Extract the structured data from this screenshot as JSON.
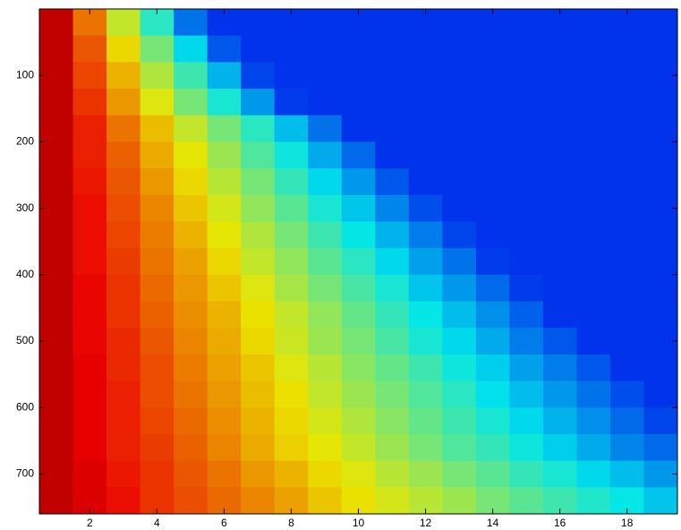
{
  "chart_data": {
    "type": "heatmap",
    "colormap": "jet",
    "clim": [
      0,
      1
    ],
    "x": [
      1,
      2,
      3,
      4,
      5,
      6,
      7,
      8,
      9,
      10,
      11,
      12,
      13,
      14,
      15,
      16,
      17,
      18,
      19
    ],
    "y": [
      20,
      60,
      100,
      140,
      180,
      220,
      260,
      300,
      340,
      380,
      420,
      460,
      500,
      540,
      580,
      620,
      660,
      700,
      740
    ],
    "values": [
      [
        0.92,
        0.75,
        0.58,
        0.42,
        0.25,
        0.18,
        0.18,
        0.18,
        0.18,
        0.18,
        0.18,
        0.18,
        0.18,
        0.18,
        0.18,
        0.18,
        0.18,
        0.18,
        0.18
      ],
      [
        0.92,
        0.78,
        0.64,
        0.5,
        0.36,
        0.22,
        0.18,
        0.18,
        0.18,
        0.18,
        0.18,
        0.18,
        0.18,
        0.18,
        0.18,
        0.18,
        0.18,
        0.18,
        0.18
      ],
      [
        0.92,
        0.8,
        0.68,
        0.56,
        0.44,
        0.32,
        0.2,
        0.18,
        0.18,
        0.18,
        0.18,
        0.18,
        0.18,
        0.18,
        0.18,
        0.18,
        0.18,
        0.18,
        0.18
      ],
      [
        0.92,
        0.82,
        0.71,
        0.61,
        0.5,
        0.4,
        0.29,
        0.19,
        0.18,
        0.18,
        0.18,
        0.18,
        0.18,
        0.18,
        0.18,
        0.18,
        0.18,
        0.18,
        0.18
      ],
      [
        0.92,
        0.84,
        0.75,
        0.67,
        0.58,
        0.5,
        0.42,
        0.33,
        0.25,
        0.18,
        0.18,
        0.18,
        0.18,
        0.18,
        0.18,
        0.18,
        0.18,
        0.18,
        0.18
      ],
      [
        0.92,
        0.84,
        0.77,
        0.69,
        0.62,
        0.54,
        0.46,
        0.39,
        0.31,
        0.24,
        0.18,
        0.18,
        0.18,
        0.18,
        0.18,
        0.18,
        0.18,
        0.18,
        0.18
      ],
      [
        0.92,
        0.85,
        0.78,
        0.71,
        0.64,
        0.57,
        0.5,
        0.43,
        0.36,
        0.29,
        0.22,
        0.18,
        0.18,
        0.18,
        0.18,
        0.18,
        0.18,
        0.18,
        0.18
      ],
      [
        0.92,
        0.86,
        0.79,
        0.73,
        0.66,
        0.6,
        0.53,
        0.47,
        0.4,
        0.34,
        0.27,
        0.21,
        0.18,
        0.18,
        0.18,
        0.18,
        0.18,
        0.18,
        0.18
      ],
      [
        0.92,
        0.86,
        0.8,
        0.74,
        0.68,
        0.62,
        0.56,
        0.5,
        0.44,
        0.38,
        0.32,
        0.26,
        0.2,
        0.18,
        0.18,
        0.18,
        0.18,
        0.18,
        0.18
      ],
      [
        0.92,
        0.86,
        0.81,
        0.75,
        0.7,
        0.64,
        0.58,
        0.53,
        0.47,
        0.42,
        0.36,
        0.3,
        0.25,
        0.19,
        0.18,
        0.18,
        0.18,
        0.18,
        0.18
      ],
      [
        0.92,
        0.87,
        0.82,
        0.76,
        0.71,
        0.66,
        0.61,
        0.55,
        0.5,
        0.45,
        0.4,
        0.34,
        0.29,
        0.24,
        0.19,
        0.18,
        0.18,
        0.18,
        0.18
      ],
      [
        0.92,
        0.87,
        0.82,
        0.77,
        0.72,
        0.68,
        0.63,
        0.58,
        0.53,
        0.48,
        0.43,
        0.38,
        0.33,
        0.28,
        0.23,
        0.18,
        0.18,
        0.18,
        0.18
      ],
      [
        0.92,
        0.87,
        0.83,
        0.78,
        0.73,
        0.69,
        0.64,
        0.59,
        0.54,
        0.5,
        0.45,
        0.4,
        0.36,
        0.31,
        0.26,
        0.22,
        0.18,
        0.18,
        0.18
      ],
      [
        0.92,
        0.88,
        0.83,
        0.79,
        0.74,
        0.7,
        0.66,
        0.61,
        0.57,
        0.52,
        0.48,
        0.44,
        0.39,
        0.35,
        0.3,
        0.26,
        0.22,
        0.18,
        0.18
      ],
      [
        0.92,
        0.88,
        0.84,
        0.79,
        0.75,
        0.71,
        0.67,
        0.63,
        0.58,
        0.54,
        0.5,
        0.46,
        0.42,
        0.37,
        0.33,
        0.29,
        0.25,
        0.21,
        0.18
      ],
      [
        0.92,
        0.88,
        0.84,
        0.8,
        0.76,
        0.72,
        0.68,
        0.64,
        0.6,
        0.56,
        0.52,
        0.48,
        0.44,
        0.4,
        0.36,
        0.32,
        0.28,
        0.24,
        0.2
      ],
      [
        0.92,
        0.88,
        0.84,
        0.81,
        0.77,
        0.73,
        0.69,
        0.65,
        0.62,
        0.58,
        0.54,
        0.5,
        0.46,
        0.43,
        0.39,
        0.35,
        0.31,
        0.27,
        0.24
      ],
      [
        0.92,
        0.89,
        0.85,
        0.82,
        0.78,
        0.75,
        0.71,
        0.68,
        0.64,
        0.61,
        0.57,
        0.54,
        0.5,
        0.47,
        0.43,
        0.4,
        0.36,
        0.33,
        0.29
      ],
      [
        0.92,
        0.89,
        0.86,
        0.82,
        0.79,
        0.76,
        0.73,
        0.7,
        0.66,
        0.63,
        0.6,
        0.57,
        0.54,
        0.5,
        0.47,
        0.44,
        0.41,
        0.38,
        0.34
      ]
    ],
    "xlim": [
      0.5,
      19.5
    ],
    "ylim": [
      0,
      760
    ],
    "xticks": [
      2,
      4,
      6,
      8,
      10,
      12,
      14,
      16,
      18
    ],
    "yticks": [
      100,
      200,
      300,
      400,
      500,
      600,
      700
    ]
  }
}
